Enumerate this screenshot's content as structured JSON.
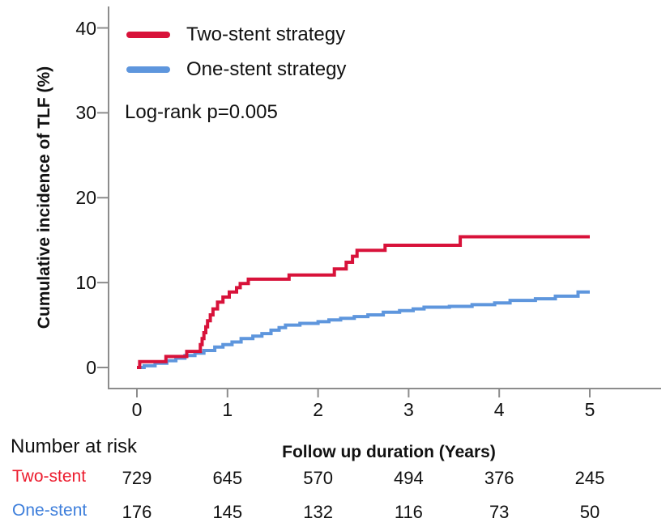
{
  "legend": {
    "items": [
      {
        "label": "Two-stent strategy",
        "color": "#D8123A"
      },
      {
        "label": "One-stent strategy",
        "color": "#5E96DD"
      }
    ]
  },
  "stats": {
    "logrank_label": "Log-rank p=0.005"
  },
  "axes": {
    "y_title": "Cumulative incidence of TLF (%)",
    "x_title": "Follow up duration (Years)"
  },
  "risk_table": {
    "title": "Number at risk",
    "axis_title": "Follow up duration (Years)",
    "rows": [
      {
        "label": "Two-stent",
        "color": "#EC1C2E",
        "counts": [
          "729",
          "645",
          "570",
          "494",
          "376",
          "245"
        ]
      },
      {
        "label": "One-stent",
        "color": "#3D7EDB",
        "counts": [
          "176",
          "145",
          "132",
          "116",
          "73",
          "50"
        ]
      }
    ]
  },
  "colors": {
    "axis": "#8C8C8C",
    "text": "#111111"
  },
  "chart_data": {
    "type": "line",
    "style": "step-kaplan-meier-cumulative-incidence",
    "title": "",
    "xlabel": "Follow up duration (Years)",
    "ylabel": "Cumulative incidence of TLF (%)",
    "xlim": [
      0,
      5
    ],
    "ylim": [
      0,
      42
    ],
    "x_ticks": [
      0,
      1,
      2,
      3,
      4,
      5
    ],
    "y_ticks": [
      0,
      10,
      20,
      30,
      40
    ],
    "grid": false,
    "legend_position": "top-left",
    "annotation": "Log-rank p=0.005",
    "series": [
      {
        "name": "Two-stent strategy",
        "color": "#D8123A",
        "points": [
          [
            0,
            0
          ],
          [
            0.03,
            0.7
          ],
          [
            0.32,
            1.3
          ],
          [
            0.55,
            1.9
          ],
          [
            0.7,
            2.7
          ],
          [
            0.72,
            3.4
          ],
          [
            0.74,
            4.1
          ],
          [
            0.76,
            4.8
          ],
          [
            0.78,
            5.5
          ],
          [
            0.81,
            6.2
          ],
          [
            0.84,
            6.9
          ],
          [
            0.89,
            7.7
          ],
          [
            0.95,
            8.3
          ],
          [
            1.02,
            8.9
          ],
          [
            1.1,
            9.4
          ],
          [
            1.14,
            9.9
          ],
          [
            1.23,
            10.4
          ],
          [
            1.68,
            10.9
          ],
          [
            2.18,
            11.6
          ],
          [
            2.31,
            12.4
          ],
          [
            2.38,
            13.1
          ],
          [
            2.43,
            13.8
          ],
          [
            2.74,
            14.4
          ],
          [
            3.57,
            15.4
          ],
          [
            5,
            15.4
          ]
        ]
      },
      {
        "name": "One-stent strategy",
        "color": "#5E96DD",
        "points": [
          [
            0,
            0
          ],
          [
            0.08,
            0.2
          ],
          [
            0.2,
            0.5
          ],
          [
            0.33,
            0.8
          ],
          [
            0.43,
            1.1
          ],
          [
            0.53,
            1.4
          ],
          [
            0.64,
            1.7
          ],
          [
            0.74,
            2.0
          ],
          [
            0.86,
            2.4
          ],
          [
            0.95,
            2.7
          ],
          [
            1.05,
            3.0
          ],
          [
            1.15,
            3.4
          ],
          [
            1.28,
            3.7
          ],
          [
            1.38,
            4.0
          ],
          [
            1.48,
            4.4
          ],
          [
            1.57,
            4.7
          ],
          [
            1.64,
            5.0
          ],
          [
            1.8,
            5.2
          ],
          [
            2.0,
            5.4
          ],
          [
            2.12,
            5.6
          ],
          [
            2.25,
            5.8
          ],
          [
            2.4,
            6.0
          ],
          [
            2.55,
            6.2
          ],
          [
            2.72,
            6.5
          ],
          [
            2.9,
            6.7
          ],
          [
            3.05,
            6.9
          ],
          [
            3.17,
            7.1
          ],
          [
            3.45,
            7.2
          ],
          [
            3.7,
            7.4
          ],
          [
            3.95,
            7.6
          ],
          [
            4.12,
            7.9
          ],
          [
            4.4,
            8.1
          ],
          [
            4.62,
            8.4
          ],
          [
            4.87,
            8.9
          ],
          [
            5,
            8.9
          ]
        ]
      }
    ],
    "number_at_risk": [
      {
        "group": "Two-stent",
        "times": [
          0,
          1,
          2,
          3,
          4,
          5
        ],
        "counts": [
          729,
          645,
          570,
          494,
          376,
          245
        ]
      },
      {
        "group": "One-stent",
        "times": [
          0,
          1,
          2,
          3,
          4,
          5
        ],
        "counts": [
          176,
          145,
          132,
          116,
          73,
          50
        ]
      }
    ]
  }
}
